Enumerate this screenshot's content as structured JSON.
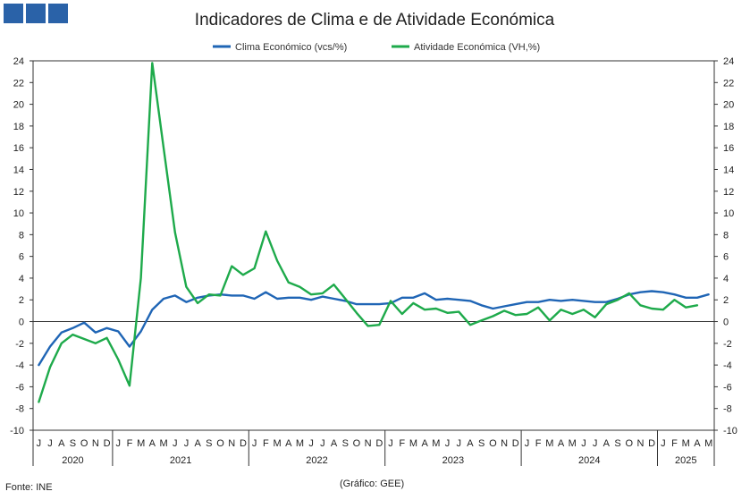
{
  "colors": {
    "clima": "#1f65b5",
    "atividade": "#1eaa4b",
    "logo": "#2a62a8"
  },
  "logo_icon": "three-blue-squares",
  "chart_data": {
    "type": "line",
    "title": "Indicadores de Clima e de Atividade Económica",
    "ylim": [
      -10,
      24
    ],
    "yticks": [
      -10,
      -8,
      -6,
      -4,
      -2,
      0,
      2,
      4,
      6,
      8,
      10,
      12,
      14,
      16,
      18,
      20,
      22,
      24
    ],
    "legend_position": "top-center",
    "months": [
      "J",
      "J",
      "A",
      "S",
      "O",
      "N",
      "D",
      "J",
      "F",
      "M",
      "A",
      "M",
      "J",
      "J",
      "A",
      "S",
      "O",
      "N",
      "D",
      "J",
      "F",
      "M",
      "A",
      "M",
      "J",
      "J",
      "A",
      "S",
      "O",
      "N",
      "D",
      "J",
      "F",
      "M",
      "A",
      "M",
      "J",
      "J",
      "A",
      "S",
      "O",
      "N",
      "D",
      "J",
      "F",
      "M",
      "A",
      "M",
      "J",
      "J",
      "A",
      "S",
      "O",
      "N",
      "D",
      "J",
      "F",
      "M",
      "A",
      "M"
    ],
    "years": [
      {
        "label": "2020",
        "start": 0,
        "end": 6
      },
      {
        "label": "2021",
        "start": 7,
        "end": 18
      },
      {
        "label": "2022",
        "start": 19,
        "end": 30
      },
      {
        "label": "2023",
        "start": 31,
        "end": 42
      },
      {
        "label": "2024",
        "start": 43,
        "end": 54
      },
      {
        "label": "2025",
        "start": 55,
        "end": 59
      }
    ],
    "series": [
      {
        "name": "Clima Económico (vcs/%)",
        "color": "#1f65b5",
        "values": [
          -4.0,
          -2.3,
          -1.0,
          -0.6,
          -0.1,
          -1.0,
          -0.6,
          -0.9,
          -2.3,
          -0.9,
          1.1,
          2.1,
          2.4,
          1.8,
          2.2,
          2.4,
          2.5,
          2.4,
          2.4,
          2.1,
          2.7,
          2.1,
          2.2,
          2.2,
          2.0,
          2.3,
          2.1,
          1.9,
          1.6,
          1.6,
          1.6,
          1.7,
          2.2,
          2.2,
          2.6,
          2.0,
          2.1,
          2.0,
          1.9,
          1.5,
          1.2,
          1.4,
          1.6,
          1.8,
          1.8,
          2.0,
          1.9,
          2.0,
          1.9,
          1.8,
          1.8,
          2.1,
          2.5,
          2.7,
          2.8,
          2.7,
          2.5,
          2.2,
          2.2,
          2.5
        ]
      },
      {
        "name": "Atividade Económica (VH,%)",
        "color": "#1eaa4b",
        "values": [
          -7.4,
          -4.2,
          -2.0,
          -1.2,
          -1.6,
          -2.0,
          -1.5,
          -3.5,
          -5.9,
          4.0,
          23.8,
          16.0,
          8.2,
          3.2,
          1.7,
          2.5,
          2.4,
          5.1,
          4.3,
          4.9,
          8.3,
          5.6,
          3.6,
          3.2,
          2.5,
          2.6,
          3.4,
          2.1,
          0.8,
          -0.4,
          -0.3,
          1.9,
          0.7,
          1.7,
          1.1,
          1.2,
          0.8,
          0.9,
          -0.3,
          0.1,
          0.5,
          1.0,
          0.6,
          0.7,
          1.3,
          0.1,
          1.1,
          0.7,
          1.1,
          0.4,
          1.6,
          2.0,
          2.6,
          1.5,
          1.2,
          1.1,
          2.0,
          1.3,
          1.5,
          null
        ]
      }
    ]
  },
  "footer": {
    "source": "Fonte: INE",
    "credit": "(Gráfico: GEE)"
  }
}
